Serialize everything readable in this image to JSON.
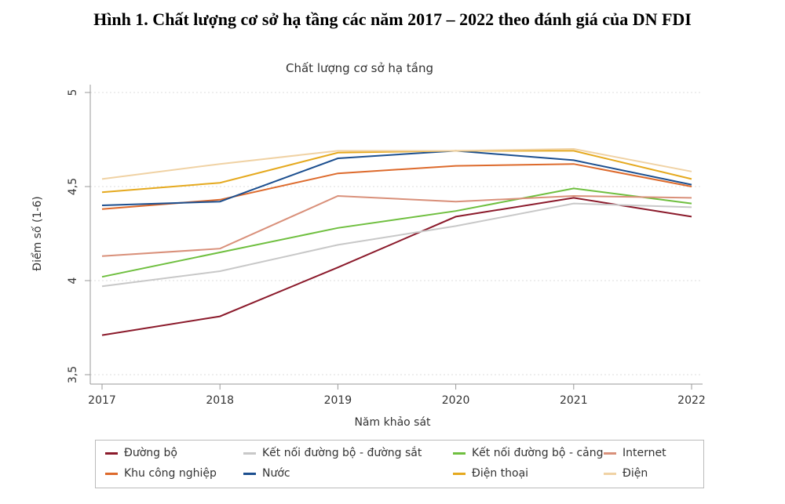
{
  "figure_title": "Hình 1. Chất lượng cơ sở hạ tầng các năm 2017 – 2022 theo đánh giá của DN FDI",
  "chart_data": {
    "type": "line",
    "title": "Chất lượng cơ sở hạ tầng",
    "xlabel": "Năm khảo sát",
    "ylabel": "Điểm số (1-6)",
    "x": [
      2017,
      2018,
      2019,
      2020,
      2021,
      2022
    ],
    "ylim": [
      3.5,
      5
    ],
    "yticks": [
      "3,5",
      "4",
      "4,5",
      "5"
    ],
    "ytick_values": [
      3.5,
      4,
      4.5,
      5
    ],
    "grid": "horizontal dotted",
    "legend_placement": "bottom",
    "series": [
      {
        "name": "Đường bộ",
        "color": "#8b1a2b",
        "values": [
          3.71,
          3.81,
          4.07,
          4.34,
          4.44,
          4.34
        ]
      },
      {
        "name": "Kết nối đường bộ - đường sắt",
        "color": "#c8c8c8",
        "values": [
          3.97,
          4.05,
          4.19,
          4.29,
          4.41,
          4.39
        ]
      },
      {
        "name": "Kết nối đường bộ - cảng",
        "color": "#6fbf3f",
        "values": [
          4.02,
          4.15,
          4.28,
          4.37,
          4.49,
          4.41
        ]
      },
      {
        "name": "Internet",
        "color": "#d9907a",
        "values": [
          4.13,
          4.17,
          4.45,
          4.42,
          4.45,
          4.44
        ]
      },
      {
        "name": "Khu công nghiệp",
        "color": "#dd6a2c",
        "values": [
          4.38,
          4.43,
          4.57,
          4.61,
          4.62,
          4.5
        ]
      },
      {
        "name": "Nước",
        "color": "#1c4f8f",
        "values": [
          4.4,
          4.42,
          4.65,
          4.69,
          4.64,
          4.51
        ]
      },
      {
        "name": "Điện thoại",
        "color": "#e5a91e",
        "values": [
          4.47,
          4.52,
          4.68,
          4.69,
          4.69,
          4.54
        ]
      },
      {
        "name": "Điện",
        "color": "#f0d2a4",
        "values": [
          4.54,
          4.62,
          4.69,
          4.69,
          4.7,
          4.58
        ]
      }
    ]
  }
}
